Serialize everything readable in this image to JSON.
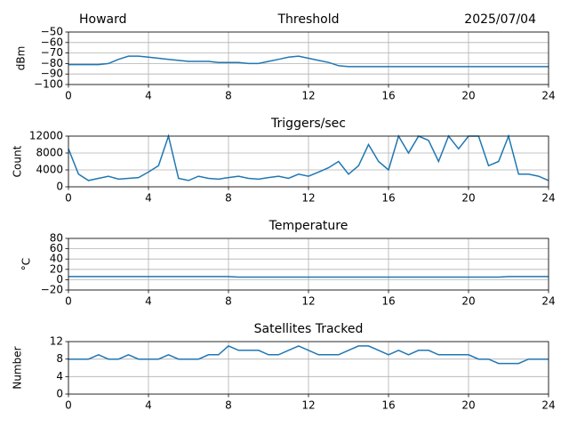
{
  "chart_data": [
    {
      "type": "line",
      "title": "Threshold",
      "title_left": "Howard",
      "title_right": "2025/07/04",
      "ylabel": "dBm",
      "xlim": [
        0,
        24
      ],
      "xticks": [
        0,
        4,
        8,
        12,
        16,
        20,
        24
      ],
      "ylim": [
        -100,
        -50
      ],
      "yticks": [
        {
          "value": -50,
          "label": "−50"
        },
        {
          "value": -60,
          "label": "−60"
        },
        {
          "value": -70,
          "label": "−70"
        },
        {
          "value": -80,
          "label": "−80"
        },
        {
          "value": -90,
          "label": "−90"
        },
        {
          "value": -100,
          "label": "−100"
        }
      ],
      "grid": true,
      "series": [
        {
          "color": "#1f77b4",
          "x": [
            0,
            0.5,
            1,
            1.5,
            2,
            2.5,
            3,
            3.5,
            4,
            4.5,
            5,
            5.5,
            6,
            6.5,
            7,
            7.5,
            8,
            8.5,
            9,
            9.5,
            10,
            10.5,
            11,
            11.5,
            12,
            12.5,
            13,
            13.5,
            14,
            14.5,
            15,
            15.5,
            16,
            16.5,
            17,
            17.5,
            18,
            18.5,
            19,
            19.5,
            20,
            20.5,
            21,
            21.5,
            22,
            22.5,
            23,
            23.5,
            24
          ],
          "values": [
            -81,
            -81,
            -81,
            -81,
            -80,
            -76,
            -73,
            -73,
            -74,
            -75,
            -76,
            -77,
            -78,
            -78,
            -78,
            -79,
            -79,
            -79,
            -80,
            -80,
            -78,
            -76,
            -74,
            -73,
            -75,
            -77,
            -79,
            -82,
            -83,
            -83,
            -83,
            -83,
            -83,
            -83,
            -83,
            -83,
            -83,
            -83,
            -83,
            -83,
            -83,
            -83,
            -83,
            -83,
            -83,
            -83,
            -83,
            -83,
            -83
          ]
        }
      ]
    },
    {
      "type": "line",
      "title": "Triggers/sec",
      "ylabel": "Count",
      "xlim": [
        0,
        24
      ],
      "xticks": [
        0,
        4,
        8,
        12,
        16,
        20,
        24
      ],
      "ylim": [
        0,
        12000
      ],
      "yticks": [
        0,
        4000,
        8000,
        12000
      ],
      "grid": true,
      "series": [
        {
          "color": "#1f77b4",
          "x": [
            0,
            0.5,
            1,
            1.5,
            2,
            2.5,
            3,
            3.5,
            4,
            4.5,
            5,
            5.5,
            6,
            6.5,
            7,
            7.5,
            8,
            8.5,
            9,
            9.5,
            10,
            10.5,
            11,
            11.5,
            12,
            12.5,
            13,
            13.5,
            14,
            14.5,
            15,
            15.5,
            16,
            16.5,
            17,
            17.5,
            18,
            18.5,
            19,
            19.5,
            20,
            20.5,
            21,
            21.5,
            22,
            22.5,
            23,
            23.5,
            24
          ],
          "values": [
            9000,
            3000,
            1500,
            2000,
            2500,
            1800,
            2000,
            2200,
            3500,
            5000,
            12000,
            2000,
            1500,
            2500,
            2000,
            1800,
            2200,
            2500,
            2000,
            1800,
            2200,
            2500,
            2000,
            3000,
            2500,
            3500,
            4500,
            6000,
            3000,
            5000,
            10000,
            6000,
            4000,
            12000,
            8000,
            12000,
            11000,
            6000,
            12000,
            9000,
            12000,
            12000,
            5000,
            6000,
            12000,
            3000,
            3000,
            2500,
            1500
          ]
        }
      ]
    },
    {
      "type": "line",
      "title": "Temperature",
      "ylabel": "°C",
      "xlim": [
        0,
        24
      ],
      "xticks": [
        0,
        4,
        8,
        12,
        16,
        20,
        24
      ],
      "ylim": [
        -20,
        80
      ],
      "yticks": [
        80,
        60,
        40,
        20,
        0,
        {
          "value": -20,
          "label": "−20"
        }
      ],
      "grid": true,
      "series": [
        {
          "color": "#1f77b4",
          "x": [
            0,
            0.5,
            1,
            1.5,
            2,
            2.5,
            3,
            3.5,
            4,
            4.5,
            5,
            5.5,
            6,
            6.5,
            7,
            7.5,
            8,
            8.5,
            9,
            9.5,
            10,
            10.5,
            11,
            11.5,
            12,
            12.5,
            13,
            13.5,
            14,
            14.5,
            15,
            15.5,
            16,
            16.5,
            17,
            17.5,
            18,
            18.5,
            19,
            19.5,
            20,
            20.5,
            21,
            21.5,
            22,
            22.5,
            23,
            23.5,
            24
          ],
          "values": [
            6,
            6,
            6,
            6,
            6,
            6,
            6,
            6,
            6,
            6,
            6,
            6,
            6,
            6,
            6,
            6,
            6,
            5,
            5,
            5,
            5,
            5,
            5,
            5,
            5,
            5,
            5,
            5,
            5,
            5,
            5,
            5,
            5,
            5,
            5,
            5,
            5,
            5,
            5,
            5,
            5,
            5,
            5,
            5,
            6,
            6,
            6,
            6,
            6
          ]
        }
      ]
    },
    {
      "type": "line",
      "title": "Satellites Tracked",
      "ylabel": "Number",
      "xlim": [
        0,
        24
      ],
      "xticks": [
        0,
        4,
        8,
        12,
        16,
        20,
        24
      ],
      "ylim": [
        0,
        12
      ],
      "yticks": [
        0,
        4,
        8,
        12
      ],
      "grid": true,
      "series": [
        {
          "color": "#1f77b4",
          "x": [
            0,
            0.5,
            1,
            1.5,
            2,
            2.5,
            3,
            3.5,
            4,
            4.5,
            5,
            5.5,
            6,
            6.5,
            7,
            7.5,
            8,
            8.5,
            9,
            9.5,
            10,
            10.5,
            11,
            11.5,
            12,
            12.5,
            13,
            13.5,
            14,
            14.5,
            15,
            15.5,
            16,
            16.5,
            17,
            17.5,
            18,
            18.5,
            19,
            19.5,
            20,
            20.5,
            21,
            21.5,
            22,
            22.5,
            23,
            23.5,
            24
          ],
          "values": [
            8,
            8,
            8,
            9,
            8,
            8,
            9,
            8,
            8,
            8,
            9,
            8,
            8,
            8,
            9,
            9,
            11,
            10,
            10,
            10,
            9,
            9,
            10,
            11,
            10,
            9,
            9,
            9,
            10,
            11,
            11,
            10,
            9,
            10,
            9,
            10,
            10,
            9,
            9,
            9,
            9,
            8,
            8,
            7,
            7,
            7,
            8,
            8,
            8
          ]
        }
      ]
    }
  ]
}
